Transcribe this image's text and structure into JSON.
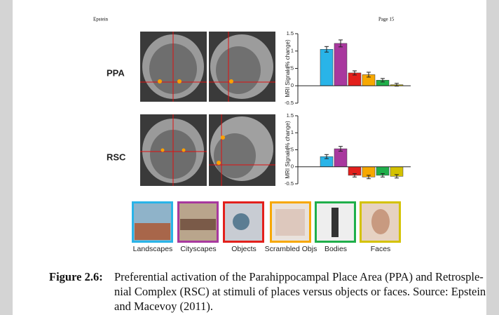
{
  "header": {
    "left": "Epstein",
    "right": "Page 15"
  },
  "chart_data": [
    {
      "type": "bar",
      "title": "PPA",
      "ylabel": "MRI Signal (% change)",
      "values": [
        1.05,
        1.22,
        0.37,
        0.32,
        0.16,
        0.03
      ],
      "errors": [
        0.08,
        0.1,
        0.06,
        0.07,
        0.05,
        0.04
      ],
      "colors": [
        "#29b4e8",
        "#a8389e",
        "#e3201c",
        "#f7a800",
        "#1faf4a",
        "#d4c200"
      ],
      "ylim": [
        -0.5,
        1.5
      ],
      "yticks": [
        -0.5,
        0,
        0.5,
        1,
        1.5
      ]
    },
    {
      "type": "bar",
      "title": "RSC",
      "ylabel": "MRI Signal (% change)",
      "values": [
        0.3,
        0.53,
        -0.25,
        -0.3,
        -0.25,
        -0.28
      ],
      "errors": [
        0.06,
        0.07,
        0.05,
        0.05,
        0.05,
        0.05
      ],
      "colors": [
        "#29b4e8",
        "#a8389e",
        "#e3201c",
        "#f7a800",
        "#1faf4a",
        "#d4c200"
      ],
      "ylim": [
        -0.5,
        1.5
      ],
      "yticks": [
        -0.5,
        0,
        0.5,
        1,
        1.5
      ]
    }
  ],
  "stimuli": [
    "Landscapes",
    "Cityscapes",
    "Objects",
    "Scrambled Objs",
    "Bodies",
    "Faces"
  ],
  "caption": {
    "label": "Figure 2.6:",
    "lines": [
      "Preferential activation of the Parahippocampal Place Area (PPA) and Retrosple-",
      "nial Complex (RSC) at stimuli of places versus objects or faces.  Source: Epstein",
      "and Macevoy (2011)."
    ]
  }
}
